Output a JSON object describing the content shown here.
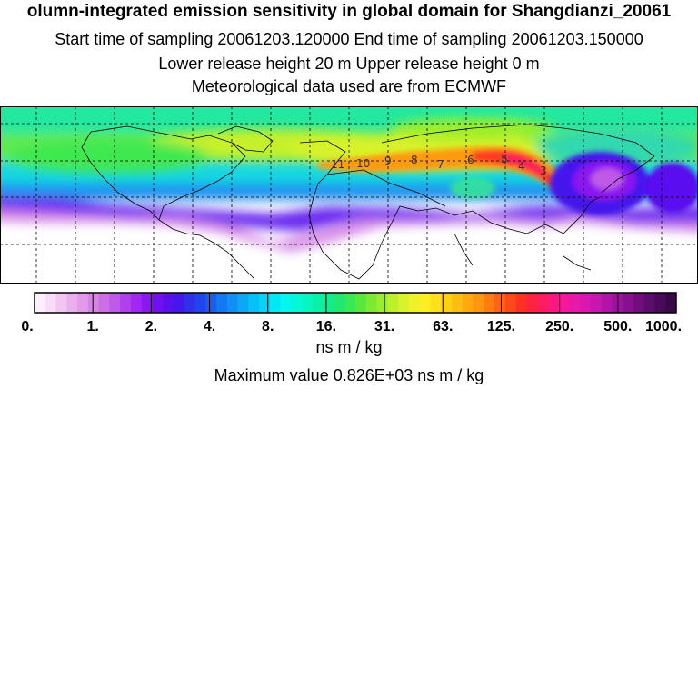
{
  "header": {
    "title": "olumn-integrated emission sensitivity in global domain for Shangdianzi_20061",
    "line2": "Start time of sampling 20061203.120000     End time of sampling 20061203.150000",
    "line3": "Lower release height   20 m          Upper release height    0 m",
    "line4": "Meteorological data used are from ECMWF"
  },
  "map": {
    "track_labels": [
      "11",
      "10",
      "9",
      "8",
      "7",
      "6",
      "5",
      "4",
      "3"
    ]
  },
  "colorbar": {
    "tick_labels": [
      "0.",
      "1.",
      "2.",
      "4.",
      "8.",
      "16.",
      "31.",
      "63.",
      "125.",
      "250.",
      "500.",
      "1000."
    ],
    "units": "ns m / kg",
    "colors": [
      "#fdf0fd",
      "#f8dcf8",
      "#f2c6f2",
      "#eab0ee",
      "#e29ae8",
      "#d884e6",
      "#cc6ee4",
      "#c058e8",
      "#b040ec",
      "#a028f0",
      "#8a18f0",
      "#7010f0",
      "#5a10ee",
      "#4418ec",
      "#3030ea",
      "#2244ec",
      "#1a5cf0",
      "#1478f2",
      "#1090f4",
      "#0aa8f6",
      "#06c0f8",
      "#04d4f8",
      "#04e8f6",
      "#04f6ee",
      "#06f6d8",
      "#08f4c0",
      "#0af0a6",
      "#12ec8c",
      "#20e870",
      "#38e854",
      "#58e83c",
      "#7cea30",
      "#9cee2c",
      "#bcf02c",
      "#d8f22c",
      "#eef22a",
      "#fcee22",
      "#fee01c",
      "#fed016",
      "#febe10",
      "#feaa0e",
      "#fe960e",
      "#fe7c10",
      "#fe6414",
      "#fe4a1a",
      "#fe3224",
      "#fe2440",
      "#fe1c60",
      "#fc1880",
      "#f4189a",
      "#e818a8",
      "#da18b0",
      "#c816b0",
      "#b214a8",
      "#9c129c",
      "#86108e",
      "#700e7e",
      "#5c0c6c",
      "#4a0a5a",
      "#3a0848"
    ]
  },
  "max_value_text": "Maximum value  0.826E+03 ns m / kg"
}
